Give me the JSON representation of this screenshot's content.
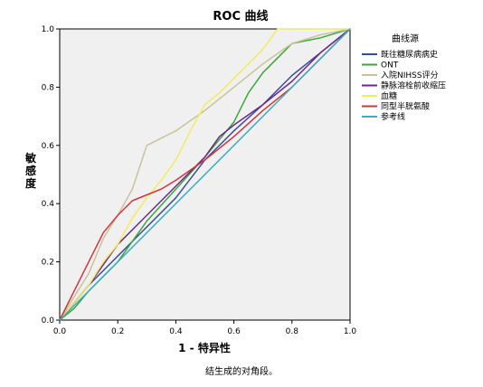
{
  "chart_data": {
    "type": "line",
    "title": "ROC 曲线",
    "xlabel": "1 - 特异性",
    "ylabel": "敏感度",
    "xlim": [
      0,
      1
    ],
    "ylim": [
      0,
      1
    ],
    "xticks": [
      "0.0",
      "0.2",
      "0.4",
      "0.6",
      "0.8",
      "1.0"
    ],
    "yticks": [
      "0.0",
      "0.2",
      "0.4",
      "0.6",
      "0.8",
      "1.0"
    ],
    "grid": false,
    "legend_title": "曲线源",
    "legend_position": "right",
    "footnote": "结生成的对角段。",
    "series": [
      {
        "name": "既往糖尿病病史",
        "color": "#3b4d9e",
        "x": [
          0,
          0.1,
          0.2,
          0.28,
          0.4,
          0.5,
          0.6,
          0.7,
          0.8,
          0.9,
          1.0
        ],
        "y": [
          0,
          0.12,
          0.22,
          0.3,
          0.42,
          0.55,
          0.65,
          0.74,
          0.84,
          0.92,
          1.0
        ]
      },
      {
        "name": "ONT",
        "color": "#3aa83a",
        "x": [
          0,
          0.05,
          0.1,
          0.2,
          0.3,
          0.4,
          0.5,
          0.6,
          0.65,
          0.7,
          0.75,
          0.8,
          0.9,
          1.0
        ],
        "y": [
          0,
          0.04,
          0.1,
          0.2,
          0.34,
          0.45,
          0.56,
          0.68,
          0.78,
          0.85,
          0.9,
          0.95,
          0.97,
          1.0
        ]
      },
      {
        "name": "入院NIHSS评分",
        "color": "#c9c39a",
        "x": [
          0,
          0.05,
          0.1,
          0.15,
          0.2,
          0.25,
          0.3,
          0.4,
          0.5,
          0.6,
          0.7,
          0.8,
          0.9,
          1.0
        ],
        "y": [
          0,
          0.08,
          0.16,
          0.28,
          0.36,
          0.45,
          0.6,
          0.65,
          0.72,
          0.8,
          0.88,
          0.95,
          0.98,
          1.0
        ]
      },
      {
        "name": "静脉溶栓前收缩压",
        "color": "#6a2a8a",
        "x": [
          0,
          0.1,
          0.2,
          0.3,
          0.4,
          0.5,
          0.55,
          0.6,
          0.7,
          0.8,
          0.9,
          1.0
        ],
        "y": [
          0,
          0.12,
          0.26,
          0.36,
          0.46,
          0.56,
          0.63,
          0.67,
          0.74,
          0.82,
          0.92,
          1.0
        ]
      },
      {
        "name": "血糖",
        "color": "#f2ec5a",
        "x": [
          0,
          0.05,
          0.1,
          0.15,
          0.2,
          0.25,
          0.3,
          0.35,
          0.4,
          0.45,
          0.5,
          0.55,
          0.6,
          0.65,
          0.7,
          0.75,
          0.8,
          0.9,
          1.0
        ],
        "y": [
          0,
          0.06,
          0.12,
          0.2,
          0.26,
          0.35,
          0.42,
          0.48,
          0.55,
          0.65,
          0.74,
          0.78,
          0.83,
          0.88,
          0.93,
          1.0,
          1.0,
          1.0,
          1.0
        ]
      },
      {
        "name": "同型半胱氨酸",
        "color": "#d6333a",
        "x": [
          0,
          0.05,
          0.1,
          0.15,
          0.2,
          0.25,
          0.3,
          0.35,
          0.4,
          0.5,
          0.6,
          0.7,
          0.8,
          0.9,
          1.0
        ],
        "y": [
          0,
          0.1,
          0.2,
          0.3,
          0.36,
          0.41,
          0.43,
          0.45,
          0.48,
          0.55,
          0.63,
          0.72,
          0.8,
          0.9,
          1.0
        ]
      },
      {
        "name": "参考线",
        "color": "#3aaec0",
        "x": [
          0,
          1
        ],
        "y": [
          0,
          1
        ]
      }
    ]
  }
}
